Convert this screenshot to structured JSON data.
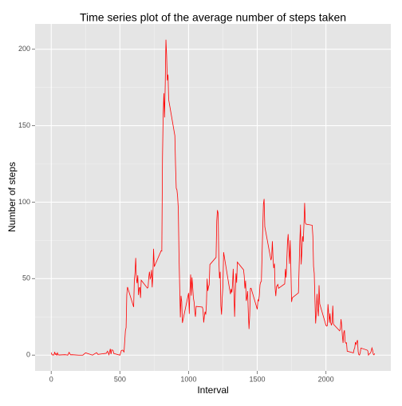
{
  "chart_data": {
    "type": "line",
    "title": "Time series plot of the average number of steps taken",
    "x_label": "Interval",
    "y_label": "Number of steps",
    "color": "#ff0000",
    "x": [
      0,
      5,
      10,
      15,
      20,
      25,
      30,
      35,
      40,
      45,
      50,
      55,
      100,
      110,
      120,
      130,
      140,
      150,
      200,
      230,
      250,
      300,
      330,
      340,
      400,
      410,
      420,
      430,
      435,
      440,
      450,
      455,
      500,
      510,
      520,
      530,
      540,
      545,
      550,
      555,
      600,
      605,
      610,
      615,
      620,
      625,
      630,
      635,
      640,
      645,
      650,
      655,
      700,
      705,
      710,
      715,
      720,
      725,
      730,
      735,
      740,
      745,
      750,
      800,
      805,
      810,
      815,
      820,
      825,
      830,
      835,
      840,
      845,
      850,
      855,
      900,
      905,
      910,
      915,
      920,
      925,
      930,
      935,
      940,
      945,
      950,
      955,
      1000,
      1005,
      1010,
      1015,
      1020,
      1025,
      1030,
      1035,
      1040,
      1045,
      1050,
      1055,
      1100,
      1105,
      1110,
      1115,
      1120,
      1125,
      1130,
      1135,
      1140,
      1145,
      1150,
      1155,
      1200,
      1205,
      1210,
      1215,
      1220,
      1225,
      1230,
      1235,
      1240,
      1245,
      1250,
      1255,
      1300,
      1305,
      1310,
      1315,
      1320,
      1325,
      1330,
      1335,
      1340,
      1345,
      1350,
      1355,
      1400,
      1405,
      1410,
      1415,
      1420,
      1425,
      1430,
      1435,
      1440,
      1445,
      1450,
      1455,
      1500,
      1505,
      1510,
      1515,
      1520,
      1525,
      1530,
      1535,
      1540,
      1545,
      1550,
      1555,
      1600,
      1605,
      1610,
      1615,
      1620,
      1625,
      1630,
      1635,
      1640,
      1645,
      1650,
      1655,
      1700,
      1705,
      1710,
      1715,
      1720,
      1725,
      1730,
      1735,
      1740,
      1745,
      1750,
      1755,
      1800,
      1805,
      1810,
      1815,
      1820,
      1825,
      1830,
      1835,
      1840,
      1845,
      1850,
      1855,
      1900,
      1905,
      1910,
      1915,
      1920,
      1925,
      1930,
      1935,
      1940,
      1945,
      1950,
      1955,
      2000,
      2005,
      2010,
      2015,
      2020,
      2025,
      2030,
      2035,
      2040,
      2045,
      2050,
      2055,
      2100,
      2105,
      2110,
      2115,
      2120,
      2125,
      2130,
      2135,
      2140,
      2145,
      2150,
      2155,
      2200,
      2205,
      2210,
      2215,
      2220,
      2225,
      2230,
      2235,
      2240,
      2245,
      2250,
      2255,
      2300,
      2305,
      2310,
      2315,
      2320,
      2325,
      2330,
      2335,
      2340,
      2345,
      2350,
      2355
    ],
    "values": [
      1.7,
      0.3,
      0.1,
      0.2,
      0.1,
      2.1,
      0.5,
      0.9,
      0,
      1.5,
      0.3,
      0.1,
      0.3,
      0.2,
      0,
      1.8,
      0.2,
      0.3,
      0,
      0,
      1.5,
      0,
      1.6,
      0.5,
      1.2,
      2.6,
      0.3,
      4.1,
      0.7,
      3.5,
      3.1,
      1.1,
      0,
      3,
      3.3,
      2.1,
      16,
      18,
      39.5,
      44.5,
      31.5,
      49,
      53.8,
      63.5,
      50,
      47,
      52.2,
      39.3,
      44,
      44.2,
      37.4,
      49,
      43.8,
      44.4,
      50.8,
      54.5,
      49.9,
      50.9,
      55.7,
      44.3,
      52.3,
      69.5,
      57.8,
      68.2,
      68,
      129.4,
      157.5,
      171.2,
      155.4,
      177.3,
      206.2,
      195.9,
      179.6,
      183.4,
      167,
      143.5,
      124,
      109.1,
      108.1,
      103.7,
      95.97,
      66.2,
      45.2,
      24.8,
      38.8,
      35,
      21.1,
      40.6,
      26.98,
      42.4,
      52.7,
      38.9,
      50.8,
      44.3,
      37.4,
      34.7,
      28.3,
      25.1,
      31.9,
      31.4,
      29.7,
      21.3,
      25.5,
      28.4,
      26.5,
      33.4,
      50,
      42,
      44.6,
      46,
      59.2,
      63.9,
      87.7,
      94.8,
      92.8,
      63.4,
      50.2,
      54.5,
      32.4,
      26.5,
      37.7,
      45.1,
      67.3,
      42.3,
      39.9,
      43.3,
      40.98,
      46.2,
      56.4,
      42.8,
      25.1,
      39.96,
      53.5,
      47.3,
      60.8,
      55.8,
      51.9,
      43.6,
      48.7,
      35.5,
      37.5,
      41.8,
      27.5,
      17.1,
      26.1,
      43.6,
      43.8,
      30,
      36.1,
      35.5,
      38.8,
      45.96,
      47.8,
      48.1,
      65.3,
      82.9,
      98.7,
      102.1,
      83.96,
      62.1,
      64.1,
      74.5,
      63.2,
      56.9,
      59.8,
      43.9,
      38.6,
      44.7,
      45.5,
      46.2,
      43.7,
      46.6,
      56.3,
      50.7,
      61.2,
      73.4,
      79.1,
      68.9,
      59.7,
      75.1,
      56.5,
      34.8,
      37.5,
      40.7,
      58,
      74.7,
      85.3,
      59.3,
      67.8,
      77.7,
      74.2,
      85.3,
      99.5,
      86.6,
      85.6,
      84.9,
      77.8,
      58,
      53.4,
      36.3,
      20.7,
      27.4,
      40,
      30.2,
      25.5,
      45.7,
      33.5,
      19.6,
      19,
      19.3,
      33.3,
      26.8,
      21.2,
      27.3,
      21.3,
      19.5,
      21.3,
      32.3,
      20.2,
      15.9,
      17.2,
      23.5,
      19.2,
      12.5,
      8,
      14.7,
      16.3,
      8.7,
      7.8,
      8.1,
      2.6,
      1.5,
      3.7,
      4.8,
      8.5,
      7.1,
      8.7,
      9.8,
      2.2,
      0.3,
      0.1,
      1.6,
      4.6,
      3.3,
      2.8,
      0,
      0.8,
      1,
      1.6,
      2.6,
      4.7,
      3.3,
      0.6,
      0.2,
      1.1
    ],
    "xlim": [
      -117.75,
      2472.75
    ],
    "xticks": [
      0,
      500,
      1000,
      1500,
      2000
    ],
    "ylim": [
      -10.3,
      216.5
    ],
    "yticks": [
      0,
      50,
      100,
      150,
      200
    ],
    "grid": true
  }
}
